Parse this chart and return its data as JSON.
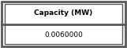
{
  "header": "Capacity (MW)",
  "value": "0.0060000",
  "header_fontsize": 6.5,
  "value_fontsize": 6.5,
  "background_color": "#ffffff",
  "border_color": "#5a5a5a",
  "text_color": "#000000",
  "fig_width": 1.61,
  "fig_height": 0.61,
  "dpi": 100
}
